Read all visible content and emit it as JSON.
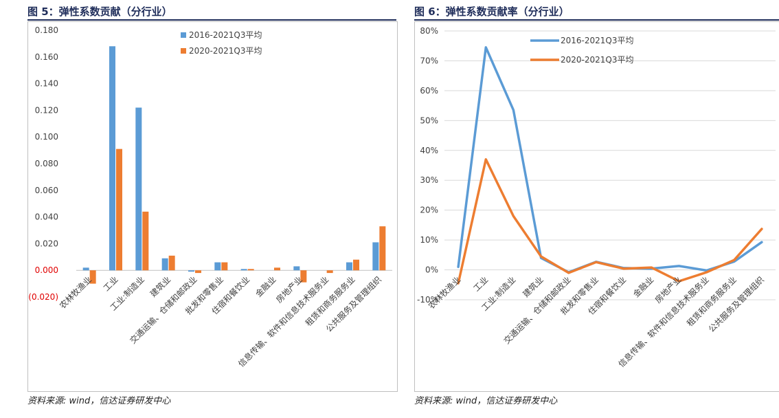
{
  "figures": {
    "fig1": {
      "title": "图 5：弹性系数贡献（分行业）",
      "source": "资料来源: wind，信达证券研发中心"
    },
    "fig2": {
      "title": "图 6：弹性系数贡献率（分行业）",
      "source": "资料来源: wind，信达证券研发中心"
    }
  },
  "colors": {
    "blue": "#5b9bd5",
    "orange": "#ed7d31",
    "negative_tick": "#e00000",
    "grid": "#d9d9d9"
  },
  "chart_data": [
    {
      "type": "bar",
      "title": "弹性系数贡献（分行业）",
      "categories": [
        "农林牧渔业",
        "工业",
        "工业:制造业",
        "建筑业",
        "交通运输、仓储和邮政业",
        "批发和零售业",
        "住宿和餐饮业",
        "金融业",
        "房地产业",
        "信息传输、软件和信息技术服务业",
        "租赁和商务服务业",
        "公共服务及管理组织"
      ],
      "series": [
        {
          "name": "2016-2021Q3平均",
          "values": [
            0.002,
            0.168,
            0.122,
            0.009,
            -0.001,
            0.006,
            0.001,
            0.0,
            0.003,
            0.0,
            0.006,
            0.021
          ]
        },
        {
          "name": "2020-2021Q3平均",
          "values": [
            -0.01,
            0.091,
            0.044,
            0.011,
            -0.002,
            0.006,
            0.001,
            0.002,
            -0.009,
            -0.002,
            0.008,
            0.033
          ]
        }
      ],
      "ylim": [
        -0.02,
        0.18
      ],
      "yticks": [
        "(0.020)",
        "0.000",
        "0.020",
        "0.040",
        "0.060",
        "0.080",
        "0.100",
        "0.120",
        "0.140",
        "0.160",
        "0.180"
      ],
      "legend": "top-center"
    },
    {
      "type": "line",
      "title": "弹性系数贡献率（分行业）",
      "categories": [
        "农林牧渔业",
        "工业",
        "工业:制造业",
        "建筑业",
        "交通运输、仓储和邮政业",
        "批发和零售业",
        "住宿和餐饮业",
        "金融业",
        "房地产业",
        "信息传输、软件和信息技术服务业",
        "租赁和商务服务业",
        "公共服务及管理组织"
      ],
      "series": [
        {
          "name": "2016-2021Q3平均",
          "values": [
            1.0,
            74.5,
            53.5,
            4.0,
            -0.8,
            2.7,
            0.6,
            0.4,
            1.3,
            -0.2,
            2.8,
            9.3
          ]
        },
        {
          "name": "2020-2021Q3平均",
          "values": [
            -4.5,
            37.0,
            18.0,
            4.5,
            -1.0,
            2.6,
            0.4,
            0.8,
            -3.8,
            -0.8,
            3.3,
            13.7
          ]
        }
      ],
      "ylim": [
        -10,
        80
      ],
      "yticks": [
        "-10%",
        "0%",
        "10%",
        "20%",
        "30%",
        "40%",
        "50%",
        "60%",
        "70%",
        "80%"
      ],
      "legend": "top-center"
    }
  ]
}
